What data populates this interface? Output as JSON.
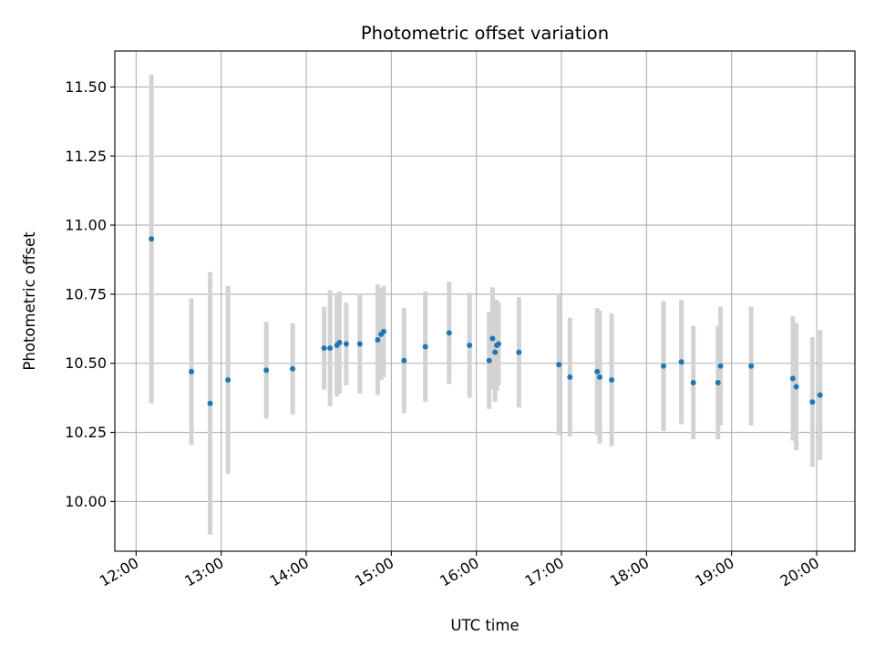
{
  "chart_data": {
    "type": "scatter",
    "title": "Photometric offset variation",
    "xlabel": "UTC time",
    "ylabel": "Photometric offset",
    "x_unit": "hour of day (UTC)",
    "xlim": [
      11.75,
      20.45
    ],
    "ylim": [
      9.82,
      11.63
    ],
    "x_ticks": [
      12,
      13,
      14,
      15,
      16,
      17,
      18,
      19,
      20
    ],
    "x_tick_labels": [
      "12:00",
      "13:00",
      "14:00",
      "15:00",
      "16:00",
      "17:00",
      "18:00",
      "19:00",
      "20:00"
    ],
    "y_ticks": [
      10.0,
      10.25,
      10.5,
      10.75,
      11.0,
      11.25,
      11.5
    ],
    "y_tick_labels": [
      "10.00",
      "10.25",
      "10.50",
      "10.75",
      "11.00",
      "11.25",
      "11.50"
    ],
    "grid": true,
    "marker_color": "#1f77b4",
    "errorbar_color": "#d3d3d3",
    "points": [
      {
        "x": 12.18,
        "y": 10.95,
        "err": 0.595
      },
      {
        "x": 12.65,
        "y": 10.47,
        "err": 0.265
      },
      {
        "x": 12.87,
        "y": 10.355,
        "err": 0.475
      },
      {
        "x": 13.08,
        "y": 10.44,
        "err": 0.34
      },
      {
        "x": 13.53,
        "y": 10.475,
        "err": 0.175
      },
      {
        "x": 13.84,
        "y": 10.48,
        "err": 0.165
      },
      {
        "x": 14.21,
        "y": 10.555,
        "err": 0.15
      },
      {
        "x": 14.28,
        "y": 10.555,
        "err": 0.21
      },
      {
        "x": 14.36,
        "y": 10.565,
        "err": 0.185
      },
      {
        "x": 14.39,
        "y": 10.575,
        "err": 0.185
      },
      {
        "x": 14.47,
        "y": 10.57,
        "err": 0.15
      },
      {
        "x": 14.63,
        "y": 10.57,
        "err": 0.18
      },
      {
        "x": 14.84,
        "y": 10.585,
        "err": 0.2
      },
      {
        "x": 14.88,
        "y": 10.605,
        "err": 0.165
      },
      {
        "x": 14.91,
        "y": 10.615,
        "err": 0.165
      },
      {
        "x": 15.15,
        "y": 10.51,
        "err": 0.19
      },
      {
        "x": 15.4,
        "y": 10.56,
        "err": 0.2
      },
      {
        "x": 15.68,
        "y": 10.61,
        "err": 0.185
      },
      {
        "x": 15.92,
        "y": 10.565,
        "err": 0.19
      },
      {
        "x": 16.15,
        "y": 10.51,
        "err": 0.175
      },
      {
        "x": 16.19,
        "y": 10.59,
        "err": 0.185
      },
      {
        "x": 16.22,
        "y": 10.54,
        "err": 0.18
      },
      {
        "x": 16.24,
        "y": 10.565,
        "err": 0.165
      },
      {
        "x": 16.26,
        "y": 10.57,
        "err": 0.15
      },
      {
        "x": 16.5,
        "y": 10.54,
        "err": 0.2
      },
      {
        "x": 16.97,
        "y": 10.495,
        "err": 0.255
      },
      {
        "x": 17.1,
        "y": 10.45,
        "err": 0.215
      },
      {
        "x": 17.42,
        "y": 10.47,
        "err": 0.23
      },
      {
        "x": 17.45,
        "y": 10.45,
        "err": 0.24
      },
      {
        "x": 17.59,
        "y": 10.44,
        "err": 0.24
      },
      {
        "x": 18.2,
        "y": 10.49,
        "err": 0.235
      },
      {
        "x": 18.41,
        "y": 10.505,
        "err": 0.225
      },
      {
        "x": 18.55,
        "y": 10.43,
        "err": 0.205
      },
      {
        "x": 18.84,
        "y": 10.43,
        "err": 0.205
      },
      {
        "x": 18.87,
        "y": 10.49,
        "err": 0.215
      },
      {
        "x": 19.23,
        "y": 10.49,
        "err": 0.215
      },
      {
        "x": 19.72,
        "y": 10.445,
        "err": 0.225
      },
      {
        "x": 19.76,
        "y": 10.415,
        "err": 0.23
      },
      {
        "x": 19.95,
        "y": 10.36,
        "err": 0.235
      },
      {
        "x": 20.04,
        "y": 10.385,
        "err": 0.235
      }
    ]
  }
}
